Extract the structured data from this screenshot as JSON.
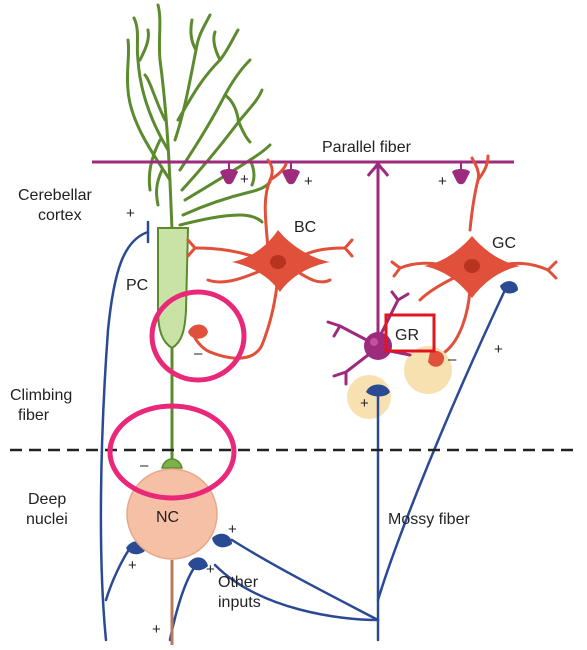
{
  "labels": {
    "parallel_fiber": "Parallel fiber",
    "cerebellar_cortex_1": "Cerebellar",
    "cerebellar_cortex_2": "cortex",
    "climbing_fiber_1": "Climbing",
    "climbing_fiber_2": "fiber",
    "deep_nuclei_1": "Deep",
    "deep_nuclei_2": "nuclei",
    "other_inputs_1": "Other",
    "other_inputs_2": "inputs",
    "mossy_fiber": "Mossy fiber",
    "pc": "PC",
    "bc": "BC",
    "gc": "GC",
    "gr": "GR",
    "nc": "NC"
  },
  "signs": {
    "plus": "+",
    "minus": "–"
  },
  "colors": {
    "purkinje_green": "#5c8a2e",
    "purkinje_body": "#c9e3a6",
    "parallel_purple": "#9c2a7d",
    "interneuron_red": "#e0503a",
    "nc_fill": "#f6c0a6",
    "mossy_blue": "#2b4a94",
    "highlight_pink": "#e9287a",
    "gr_box_red": "#e0151f",
    "halo_yellow": "#f7dca3"
  }
}
